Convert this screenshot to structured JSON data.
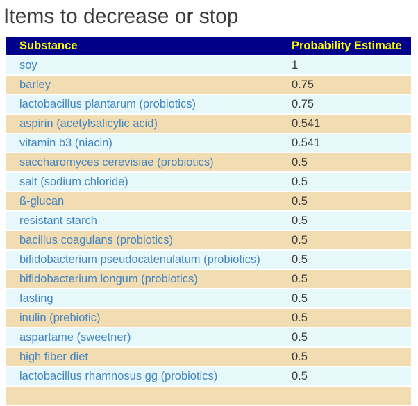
{
  "title": "Items to decrease or stop",
  "title_color": "#3B3B3B",
  "page_background": "#FFFFFF",
  "table": {
    "columns": [
      "Substance",
      "Probability Estimate"
    ],
    "header_bg": "#00008B",
    "header_text_color": "#FFFF00",
    "row_color_light_blue": "#E7F8FB",
    "row_color_tan": "#F2DCB2",
    "substance_text_color": "#4385C1",
    "value_text_color": "#3A3A3A",
    "rows": [
      {
        "substance": "soy",
        "probability": "1"
      },
      {
        "substance": "barley",
        "probability": "0.75"
      },
      {
        "substance": "lactobacillus plantarum (probiotics)",
        "probability": "0.75"
      },
      {
        "substance": "aspirin (acetylsalicylic acid)",
        "probability": "0.541"
      },
      {
        "substance": "vitamin b3 (niacin)",
        "probability": "0.541"
      },
      {
        "substance": "saccharomyces cerevisiae (probiotics)",
        "probability": "0.5"
      },
      {
        "substance": "salt (sodium chloride)",
        "probability": "0.5"
      },
      {
        "substance": "ß-glucan",
        "probability": "0.5"
      },
      {
        "substance": "resistant starch",
        "probability": "0.5"
      },
      {
        "substance": "bacillus coagulans (probiotics)",
        "probability": "0.5"
      },
      {
        "substance": "bifidobacterium pseudocatenulatum (probiotics)",
        "probability": "0.5"
      },
      {
        "substance": "bifidobacterium longum (probiotics)",
        "probability": "0.5"
      },
      {
        "substance": "fasting",
        "probability": "0.5"
      },
      {
        "substance": "inulin (prebiotic)",
        "probability": "0.5"
      },
      {
        "substance": "aspartame (sweetner)",
        "probability": "0.5"
      },
      {
        "substance": "high fiber diet",
        "probability": "0.5"
      },
      {
        "substance": "lactobacillus rhamnosus gg (probiotics)",
        "probability": "0.5"
      }
    ],
    "clipped_next_row_visible": true
  }
}
